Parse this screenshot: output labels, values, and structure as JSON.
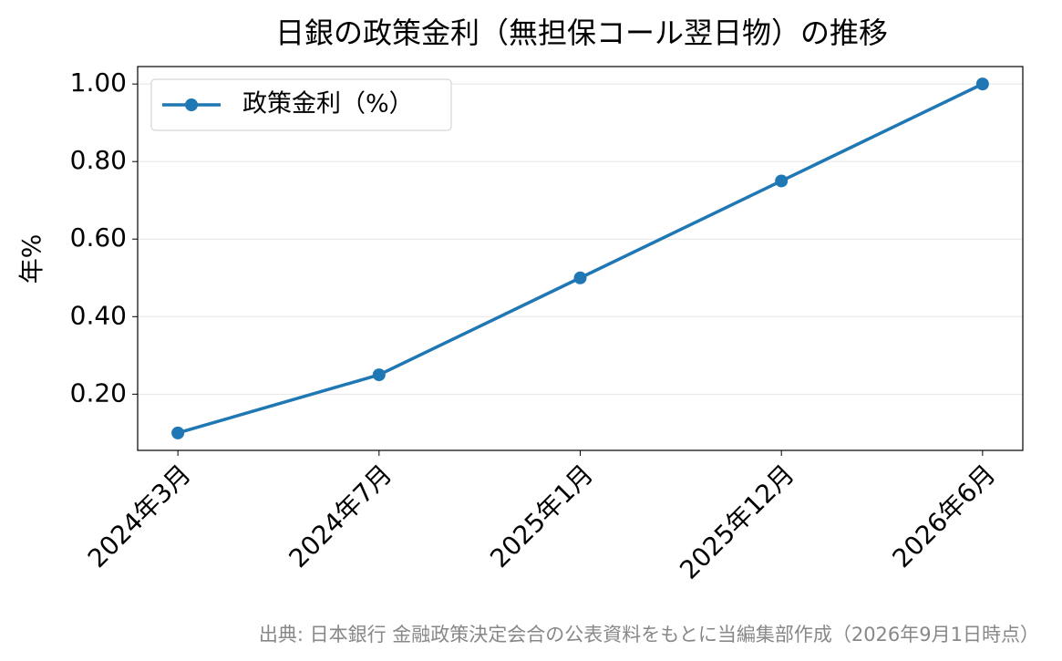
{
  "chart_data": {
    "type": "line",
    "title": "日銀の政策金利（無担保コール翌日物）の推移",
    "ylabel": "年%",
    "source": "出典: 日本銀行 金融政策決定会合の公表資料をもとに当編集部作成（2026年9月1日時点）",
    "categories": [
      "2024年3月",
      "2024年7月",
      "2025年1月",
      "2025年12月",
      "2026年6月"
    ],
    "series": [
      {
        "name": "政策金利（%）",
        "color": "#1f77b4",
        "values": [
          0.1,
          0.25,
          0.5,
          0.75,
          1.0
        ]
      }
    ],
    "ylim": [
      0.055,
      1.045
    ],
    "yticks": [
      {
        "value": 0.2,
        "label": "0.20"
      },
      {
        "value": 0.4,
        "label": "0.40"
      },
      {
        "value": 0.6,
        "label": "0.60"
      },
      {
        "value": 0.8,
        "label": "0.80"
      },
      {
        "value": 1.0,
        "label": "1.00"
      }
    ],
    "grid": true,
    "legend": "upper-left"
  }
}
